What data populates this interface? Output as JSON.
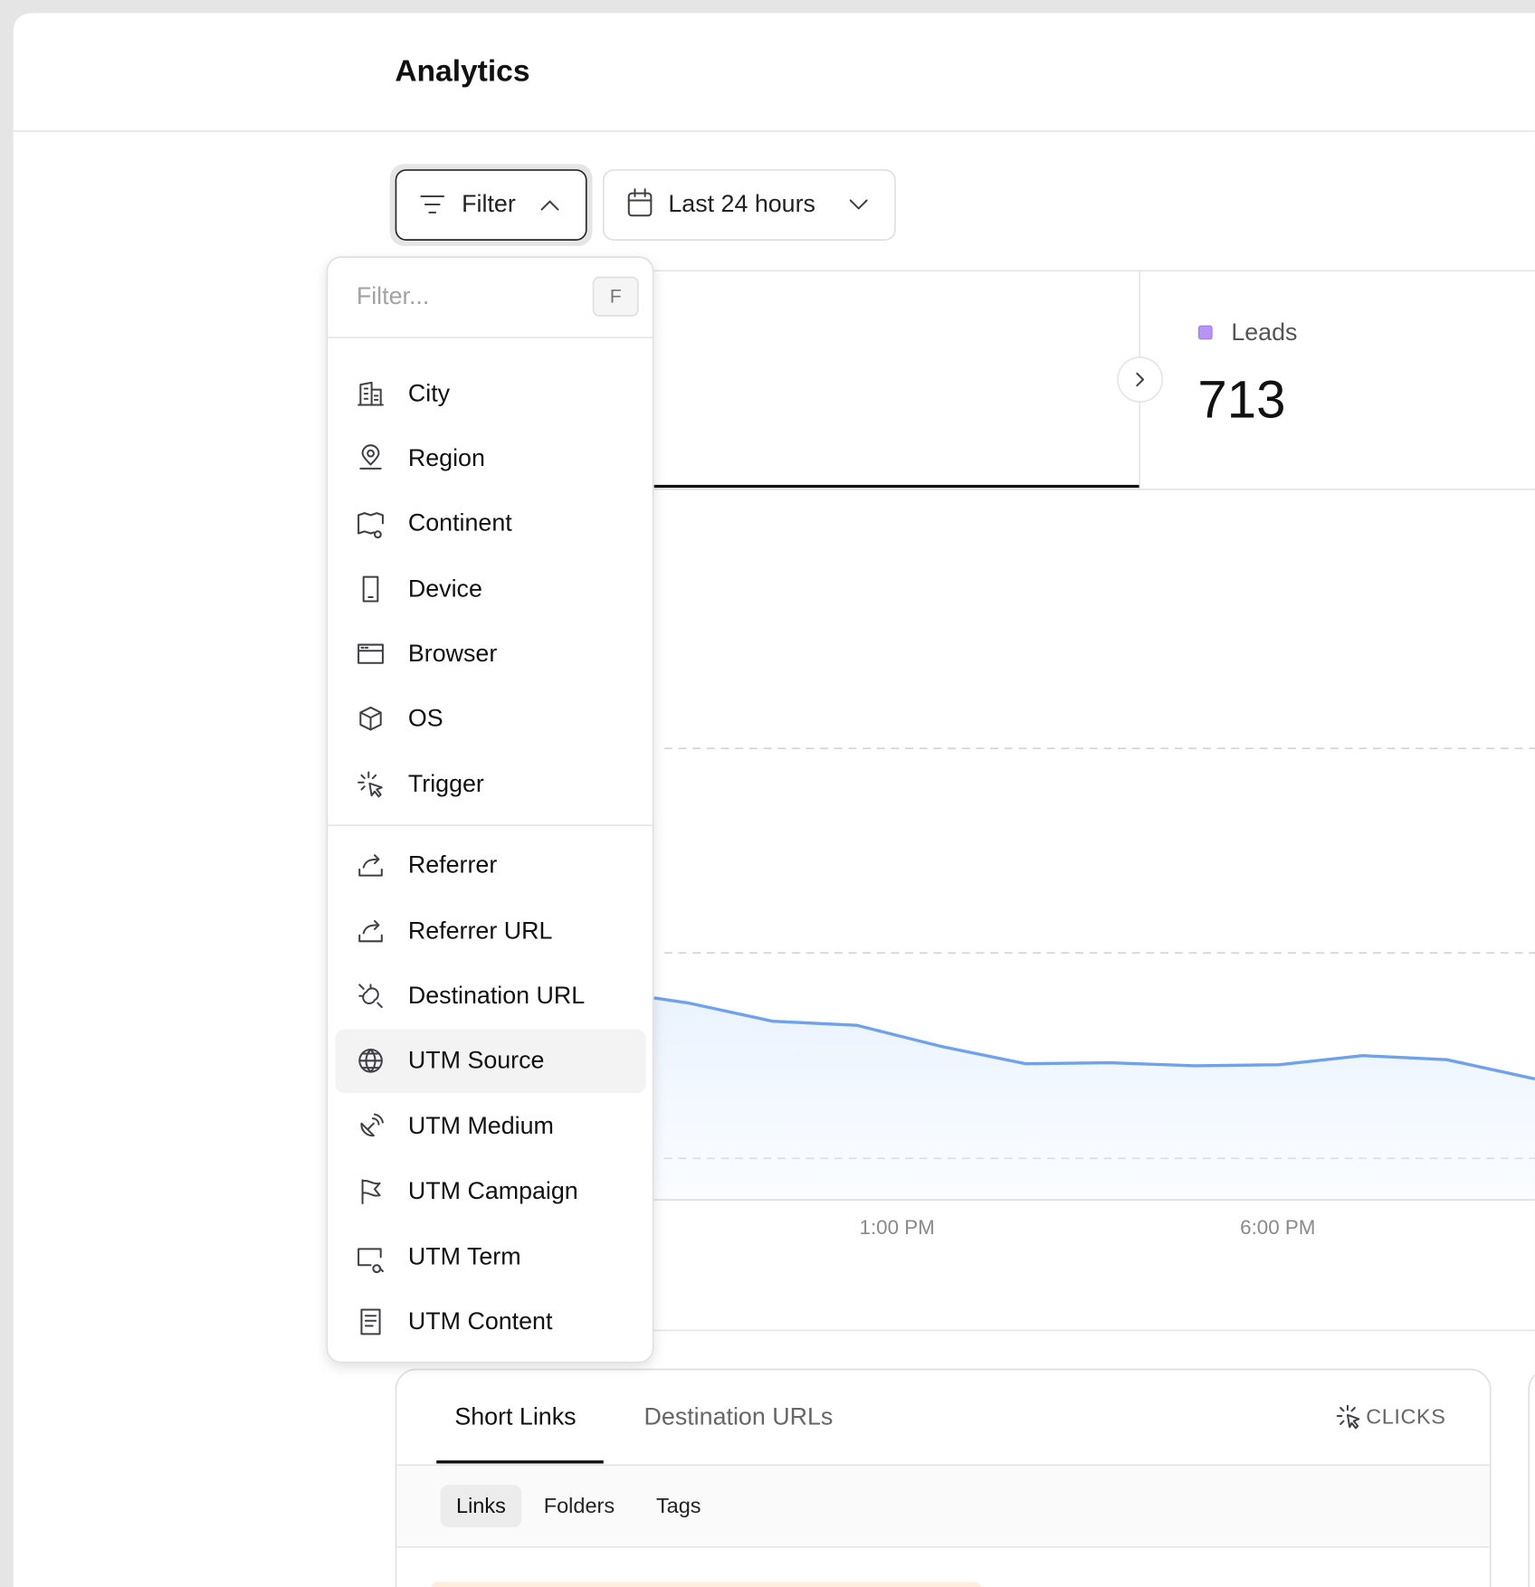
{
  "header": {
    "title": "Analytics"
  },
  "toolbar": {
    "filter_button": "Filter",
    "date_range": "Last 24 hours"
  },
  "dropdown": {
    "placeholder": "Filter...",
    "shortcut": "F",
    "groups": [
      [
        "City",
        "Region",
        "Continent",
        "Device",
        "Browser",
        "OS",
        "Trigger"
      ],
      [
        "Referrer",
        "Referrer URL",
        "Destination URL",
        "UTM Source",
        "UTM Medium",
        "UTM Campaign",
        "UTM Term",
        "UTM Content"
      ]
    ],
    "highlighted": "UTM Source"
  },
  "metric": {
    "label": "Leads",
    "value": "713"
  },
  "chart": {
    "x_labels": [
      "1:00 PM",
      "6:00 PM"
    ]
  },
  "panel": {
    "tabs": [
      "Short Links",
      "Destination URLs"
    ],
    "metric": "CLICKS",
    "subtabs": [
      "Links",
      "Folders",
      "Tags"
    ]
  }
}
